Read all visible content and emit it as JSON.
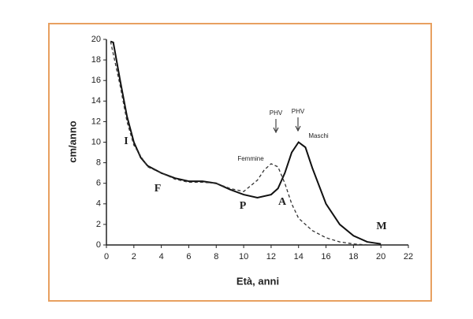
{
  "chart_data": {
    "type": "line",
    "xlabel": "Età, anni",
    "ylabel": "cm/anno",
    "xlim": [
      0,
      22
    ],
    "xticks": [
      0,
      2,
      4,
      6,
      8,
      10,
      12,
      14,
      16,
      18,
      20,
      22
    ],
    "ylim": [
      0,
      20
    ],
    "yticks": [
      0,
      2,
      4,
      6,
      8,
      10,
      12,
      14,
      16,
      18,
      20
    ],
    "grid": false,
    "series": [
      {
        "name": "Maschi",
        "color": "#111111",
        "style": "solid",
        "x": [
          0.3,
          0.5,
          1,
          1.5,
          2,
          2.5,
          3,
          4,
          5,
          6,
          7,
          8,
          9,
          10,
          11,
          12,
          12.5,
          13,
          13.5,
          14,
          14.5,
          15,
          16,
          17,
          18,
          19,
          20
        ],
        "values": [
          19.8,
          19.7,
          16,
          12.5,
          10,
          8.5,
          7.7,
          7,
          6.5,
          6.2,
          6.2,
          6.0,
          5.4,
          4.9,
          4.6,
          4.9,
          5.5,
          7,
          9,
          10,
          9.5,
          7.5,
          4,
          2,
          0.9,
          0.3,
          0.1
        ]
      },
      {
        "name": "Femmine",
        "color": "#333333",
        "style": "dashed",
        "x": [
          0.3,
          1,
          1.5,
          2,
          3,
          4,
          5,
          6,
          7,
          8,
          9,
          10,
          11,
          11.5,
          12,
          12.5,
          13,
          13.5,
          14,
          15,
          16,
          17,
          18,
          19
        ],
        "values": [
          19.8,
          15.5,
          12,
          9.7,
          7.6,
          7,
          6.4,
          6.1,
          6.1,
          6.0,
          5.5,
          5.2,
          6.3,
          7.3,
          7.9,
          7.6,
          6,
          4,
          2.6,
          1.4,
          0.7,
          0.3,
          0.1,
          0
        ]
      }
    ],
    "annotations": [
      "I",
      "F",
      "P",
      "A",
      "M",
      "PHV",
      "PHV"
    ]
  }
}
